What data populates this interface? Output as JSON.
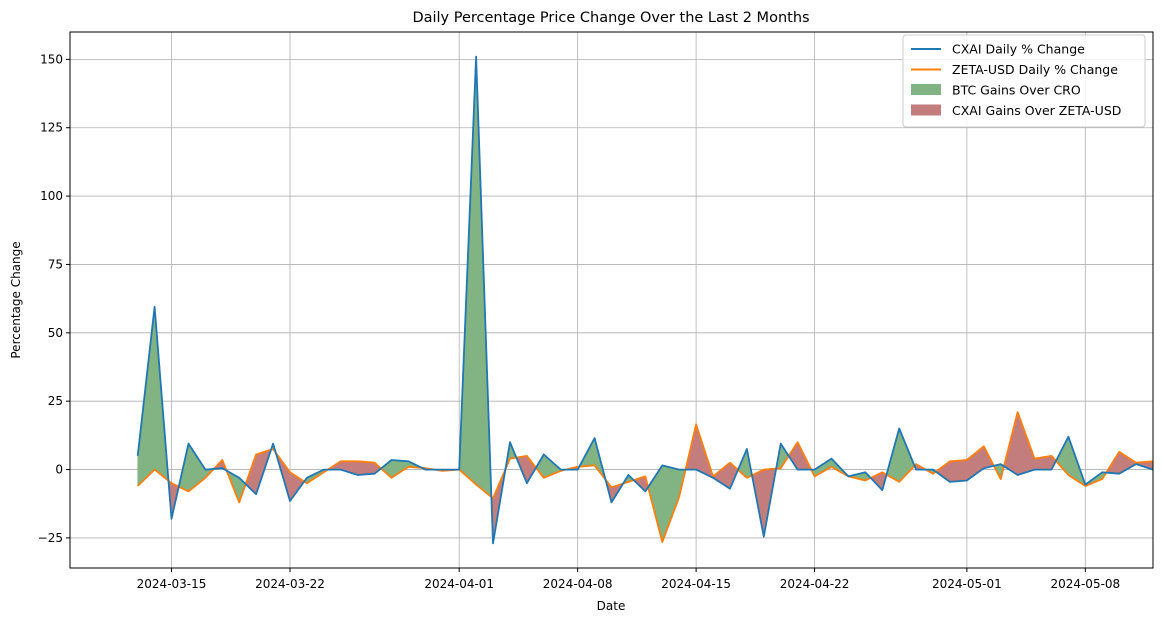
{
  "chart_data": {
    "type": "line",
    "title": "Daily Percentage Price Change Over the Last 2 Months",
    "xlabel": "Date",
    "ylabel": "Percentage Change",
    "x_ticks": [
      "2024-03-15",
      "2024-03-22",
      "2024-04-01",
      "2024-04-08",
      "2024-04-15",
      "2024-04-22",
      "2024-05-01",
      "2024-05-08"
    ],
    "y_ticks": [
      "−25",
      "0",
      "25",
      "50",
      "75",
      "100",
      "125",
      "150"
    ],
    "ylim": [
      -36,
      160
    ],
    "xlim": [
      "2024-03-09",
      "2024-05-12"
    ],
    "grid": true,
    "legend_position": "top-right",
    "legend": [
      {
        "label": "CXAI Daily % Change",
        "kind": "line",
        "color": "#1f77b4"
      },
      {
        "label": "ZETA-USD Daily % Change",
        "kind": "line",
        "color": "#ff7f0e"
      },
      {
        "label": "BTC Gains Over CRO",
        "kind": "patch",
        "color": "#82b382"
      },
      {
        "label": "CXAI Gains Over ZETA-USD",
        "kind": "patch",
        "color": "#c47d7d"
      }
    ],
    "dates": [
      "2024-03-13",
      "2024-03-14",
      "2024-03-15",
      "2024-03-16",
      "2024-03-17",
      "2024-03-18",
      "2024-03-19",
      "2024-03-20",
      "2024-03-21",
      "2024-03-22",
      "2024-03-23",
      "2024-03-24",
      "2024-03-25",
      "2024-03-26",
      "2024-03-27",
      "2024-03-28",
      "2024-03-29",
      "2024-03-30",
      "2024-03-31",
      "2024-04-01",
      "2024-04-02",
      "2024-04-03",
      "2024-04-04",
      "2024-04-05",
      "2024-04-06",
      "2024-04-07",
      "2024-04-08",
      "2024-04-09",
      "2024-04-10",
      "2024-04-11",
      "2024-04-12",
      "2024-04-13",
      "2024-04-14",
      "2024-04-15",
      "2024-04-16",
      "2024-04-17",
      "2024-04-18",
      "2024-04-19",
      "2024-04-20",
      "2024-04-21",
      "2024-04-22",
      "2024-04-23",
      "2024-04-24",
      "2024-04-25",
      "2024-04-26",
      "2024-04-27",
      "2024-04-28",
      "2024-04-29",
      "2024-04-30",
      "2024-05-01",
      "2024-05-02",
      "2024-05-03",
      "2024-05-04",
      "2024-05-05",
      "2024-05-06",
      "2024-05-07",
      "2024-05-08",
      "2024-05-09",
      "2024-05-10",
      "2024-05-11",
      "2024-05-12"
    ],
    "series": [
      {
        "name": "CXAI Daily % Change",
        "color": "#1f77b4",
        "values": [
          5,
          59.5,
          -18,
          9.5,
          0,
          0.5,
          -3,
          -9,
          9.5,
          -11.5,
          -3,
          0,
          0,
          -2,
          -1.5,
          3.5,
          3,
          0,
          0,
          0,
          151,
          -27,
          10,
          -5,
          5.5,
          0,
          0,
          11.5,
          -12,
          -2,
          -8,
          1.5,
          0,
          0,
          -3,
          -7,
          7.5,
          -24.5,
          9.5,
          0,
          0,
          4,
          -2.5,
          -1,
          -7.5,
          15,
          0,
          0,
          -4.5,
          -4,
          0.5,
          2,
          -2,
          0,
          0,
          12,
          -5.5,
          -1,
          -1.5,
          2,
          0
        ]
      },
      {
        "name": "ZETA-USD Daily % Change",
        "color": "#ff7f0e",
        "values": [
          -6,
          0,
          -5,
          -8,
          -3,
          3.5,
          -12,
          5.5,
          7.5,
          -1,
          -5,
          -1,
          3,
          3,
          2.5,
          -3,
          1,
          0.5,
          -0.5,
          0,
          -5.5,
          -10.5,
          4,
          5,
          -3,
          -0.5,
          1,
          1.5,
          -6.5,
          -4.5,
          -2.5,
          -26.5,
          -10,
          16.5,
          -2.5,
          2.5,
          -3,
          0,
          0.5,
          10,
          -2.5,
          1,
          -2.5,
          -4,
          -1,
          -4.5,
          2,
          -1.5,
          3,
          3.5,
          8.5,
          -3.5,
          21,
          4,
          5,
          -2,
          -6,
          -3.5,
          6.5,
          2.5,
          3
        ]
      }
    ]
  }
}
